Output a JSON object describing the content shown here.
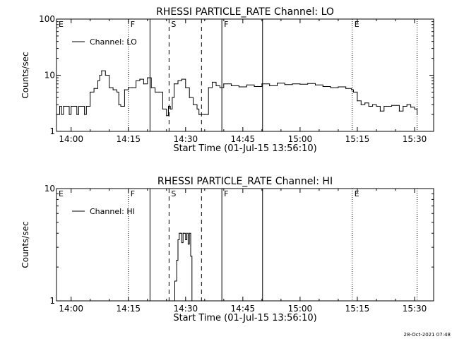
{
  "timestamp": "28-Oct-2021 07:48",
  "chart_data": [
    {
      "type": "line",
      "title": "RHESSI PARTICLE_RATE Channel: LO",
      "xlabel": "Start Time (01-Jul-15 13:56:10)",
      "ylabel": "Counts/sec",
      "yscale": "log",
      "ylim": [
        1,
        100
      ],
      "xlim": [
        "13:56:10",
        "15:35:00"
      ],
      "xticks": [
        "14:00",
        "14:15",
        "14:30",
        "14:45",
        "15:00",
        "15:15",
        "15:30"
      ],
      "yticks": [
        "1",
        "10",
        "100"
      ],
      "grid": false,
      "legend": {
        "placement": "top-left",
        "entries": [
          "Channel: LO"
        ]
      },
      "series": [
        {
          "name": "Channel: LO",
          "x": [
            "13:56:10",
            "13:57:00",
            "13:57:30",
            "13:58:00",
            "13:59:00",
            "13:59:30",
            "14:00:00",
            "14:01:00",
            "14:01:30",
            "14:02:00",
            "14:03:00",
            "14:03:30",
            "14:04:00",
            "14:05:00",
            "14:06:00",
            "14:07:00",
            "14:07:30",
            "14:08:00",
            "14:09:00",
            "14:10:00",
            "14:11:00",
            "14:12:00",
            "14:12:30",
            "14:13:00",
            "14:14:00",
            "14:15:00",
            "14:16:00",
            "14:17:00",
            "14:18:00",
            "14:19:00",
            "14:20:00",
            "14:21:00",
            "14:22:00",
            "14:23:00",
            "14:24:00",
            "14:25:00",
            "14:25:30",
            "14:26:00",
            "14:26:30",
            "14:27:00",
            "14:28:00",
            "14:29:00",
            "14:30:00",
            "14:31:00",
            "14:32:00",
            "14:33:00",
            "14:33:30",
            "14:34:00",
            "14:35:00",
            "14:36:00",
            "14:37:00",
            "14:38:00",
            "14:39:00",
            "14:40:00",
            "14:42:00",
            "14:44:00",
            "14:46:00",
            "14:48:00",
            "14:50:00",
            "14:52:00",
            "14:54:00",
            "14:56:00",
            "14:58:00",
            "15:00:00",
            "15:02:00",
            "15:04:00",
            "15:06:00",
            "15:08:00",
            "15:10:00",
            "15:12:00",
            "15:13:30",
            "15:14:00",
            "15:15:00",
            "15:16:00",
            "15:17:00",
            "15:18:00",
            "15:19:00",
            "15:20:00",
            "15:21:00",
            "15:22:00",
            "15:24:00",
            "15:26:00",
            "15:27:00",
            "15:28:00",
            "15:29:00",
            "15:30:00",
            "15:30:40"
          ],
          "values": [
            2,
            2.8,
            2,
            2.8,
            2.8,
            2,
            2.8,
            2.8,
            2,
            2.8,
            2.8,
            2,
            2.8,
            5,
            5.8,
            8,
            10,
            12,
            10,
            6,
            5.5,
            5,
            3,
            2.8,
            5.5,
            6,
            6,
            8,
            8.5,
            7,
            9,
            6,
            5,
            5,
            2.5,
            1.9,
            2.8,
            2.5,
            4,
            7,
            8,
            8.5,
            6,
            4,
            3,
            2.5,
            2,
            2,
            2,
            6,
            7.5,
            6.5,
            6,
            7,
            6.5,
            6.2,
            6.7,
            6.3,
            7,
            6.5,
            7.2,
            6.8,
            7,
            6.9,
            7.1,
            6.7,
            6.3,
            6.0,
            6.2,
            5.8,
            5.5,
            5,
            3.5,
            3,
            3.2,
            2.8,
            3,
            2.8,
            2.3,
            2.8,
            2.9,
            2.3,
            2.8,
            3,
            2.7,
            2.5,
            2
          ]
        }
      ],
      "annotations": [
        {
          "label": "E",
          "x": "13:56:10",
          "style": "none"
        },
        {
          "label": "F",
          "x": "14:15:00",
          "style": "dotted"
        },
        {
          "label": "",
          "x": "14:20:40",
          "style": "solid"
        },
        {
          "label": "S",
          "x": "14:25:40",
          "style": "dashed"
        },
        {
          "label": "",
          "x": "14:34:10",
          "style": "dashed"
        },
        {
          "label": "F",
          "x": "14:39:30",
          "style": "solid"
        },
        {
          "label": "",
          "x": "14:50:10",
          "style": "solid"
        },
        {
          "label": "E",
          "x": "15:13:40",
          "style": "dotted"
        },
        {
          "label": "",
          "x": "15:30:40",
          "style": "dotted"
        }
      ]
    },
    {
      "type": "line",
      "title": "RHESSI PARTICLE_RATE Channel: HI",
      "xlabel": "Start Time (01-Jul-15 13:56:10)",
      "ylabel": "Counts/sec",
      "yscale": "log",
      "ylim": [
        1,
        10
      ],
      "xlim": [
        "13:56:10",
        "15:35:00"
      ],
      "xticks": [
        "14:00",
        "14:15",
        "14:30",
        "14:45",
        "15:00",
        "15:15",
        "15:30"
      ],
      "yticks": [
        "1",
        "10"
      ],
      "grid": false,
      "legend": {
        "placement": "top-left",
        "entries": [
          "Channel: HI"
        ]
      },
      "series": [
        {
          "name": "Channel: HI",
          "x": [
            "14:26:40",
            "14:27:10",
            "14:27:40",
            "14:28:00",
            "14:28:20",
            "14:28:40",
            "14:29:00",
            "14:29:20",
            "14:29:40",
            "14:30:00",
            "14:30:20",
            "14:30:40",
            "14:31:00",
            "14:31:20",
            "14:31:40"
          ],
          "values": [
            1,
            1.5,
            2.3,
            3.5,
            4,
            4,
            3.3,
            4,
            4,
            3.5,
            4,
            3.2,
            4,
            2.5,
            1
          ]
        }
      ],
      "annotations": [
        {
          "label": "E",
          "x": "13:56:10",
          "style": "none"
        },
        {
          "label": "F",
          "x": "14:15:00",
          "style": "dotted"
        },
        {
          "label": "",
          "x": "14:20:40",
          "style": "solid"
        },
        {
          "label": "S",
          "x": "14:25:40",
          "style": "dashed"
        },
        {
          "label": "",
          "x": "14:34:10",
          "style": "dashed"
        },
        {
          "label": "F",
          "x": "14:39:30",
          "style": "solid"
        },
        {
          "label": "",
          "x": "14:50:10",
          "style": "solid"
        },
        {
          "label": "E",
          "x": "15:13:40",
          "style": "dotted"
        },
        {
          "label": "",
          "x": "15:30:40",
          "style": "dotted"
        }
      ]
    }
  ]
}
